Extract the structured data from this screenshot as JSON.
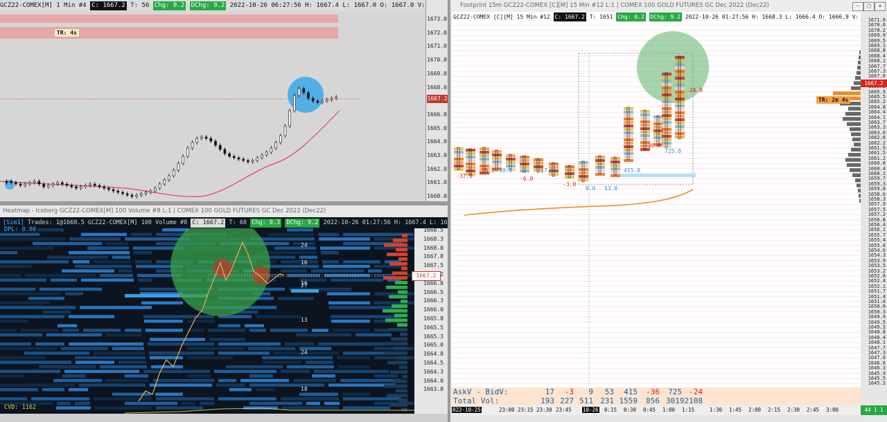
{
  "panel1": {
    "header": {
      "symbol": "GCZ22-COMEX[M]",
      "interval": "1 Min",
      "chart_no": "#4",
      "close_tag": "C: 1667.2",
      "ticks": "T: 56",
      "chg_tag": "Chg: 0.2",
      "dchg_tag": "DChg: 9.2",
      "ohlc": "2022-10-26 06:27:56 H: 1667.4 L: 1667.0 O: 1667.0 V: 66 B: 1667.1 A: 1667.2 7x5 TR: 4s BV: 31"
    },
    "timer_label": "TR: 4s",
    "last_price": "1667.2",
    "price_labels": [
      "1673.0",
      "1672.0",
      "1671.0",
      "1670.0",
      "1669.0",
      "1668.0",
      "1667.0",
      "1666.0",
      "1665.0",
      "1664.0",
      "1663.0",
      "1662.0",
      "1661.0",
      "1660.0"
    ]
  },
  "panel2": {
    "title": "Heatmap - Iceberg GCZ22-COMEX[M] 100 Volume #8 L:1 | COMEX 100 GOLD FUTURES GC Dec 2022 (Dec22)",
    "header": {
      "sim": "[Sim1]",
      "trades": "Trades: 1@1668.5",
      "symbol": "GCZ22-COMEX[M]",
      "interval": "100 Volume",
      "chart_no": "#8",
      "close_tag": "C: 1667.2",
      "ticks": "T: 68",
      "chg_tag": "Chg: 0.3",
      "dchg_tag": "DChg: 9.2",
      "ohlc": "2022-10-26 01:27:56 H: 1667.4 L: 16"
    },
    "dpl": "DPL: 0.08",
    "cvd": "CVD: 1162",
    "last_price": "1667.2",
    "price_labels": [
      "1668.5",
      "1668.3",
      "1668.0",
      "1667.8",
      "1667.5",
      "1667.2",
      "1666.8",
      "1666.5",
      "1666.3",
      "1666.0",
      "1665.8",
      "1665.5",
      "1665.3",
      "1665.0",
      "1664.8",
      "1664.5",
      "1664.3",
      "1664.0",
      "1663.8"
    ],
    "volume_labels": [
      "24",
      "16",
      "16",
      "27",
      "13",
      "24",
      "18"
    ]
  },
  "panel3": {
    "title": "Footprint 15m GCZ22-COMEX [C][M]  15 Min  #12 L:1 | COMEX 100 GOLD FUTURES GC Dec 2022 (Dec22)",
    "header": {
      "symbol": "GCZ22-COMEX [C][M]",
      "interval": "15 Min",
      "chart_no": "#12",
      "close_tag": "C: 1667.2",
      "ticks": "T: 1651",
      "chg_tag": "Chg: 0.2",
      "dchg_tag": "DChg: 9.2",
      "ohlc": "2022-10-26 01:27:56 H: 1668.3 L: 1666.4 O: 1666.9 V: 2108 B: 1667.1 A: 1667."
    },
    "timer_label": "TR: 2m 4s",
    "last_price": "1667.2",
    "deltas": [
      "-37.0",
      "-25.0",
      "80.0",
      "-6.0",
      "17.0",
      "-3.0",
      "9.0",
      "53.0",
      "415.0",
      "-36.0",
      "725.0",
      "-24.0"
    ],
    "table": {
      "row1_label": "AskV - BidV:",
      "row1": [
        "17",
        "-3",
        "9",
        "53",
        "415",
        "-36",
        "725",
        "-24"
      ],
      "row2_label": "Total Vol:",
      "row2": [
        "193",
        "227",
        "511",
        "231",
        "1559",
        "856",
        "30192108"
      ]
    },
    "time_labels": [
      "022-10-25",
      "23:00",
      "23:15",
      "23:30",
      "23:45",
      "10-26",
      "0:15",
      "0:30",
      "0:45",
      "1:00",
      "1:15",
      "1:30",
      "1:45",
      "2:00",
      "2:15",
      "2:30",
      "2:45",
      "3:00"
    ],
    "bottom_right": "44 1 1",
    "price_labels": [
      "1671.0",
      "1670.6",
      "1670.2",
      "1669.9",
      "1669.5",
      "1669.1",
      "1668.8",
      "1668.4",
      "1668.1",
      "1667.7",
      "1667.3",
      "1667.0",
      "1666.6",
      "1666.2",
      "1665.9",
      "1665.5",
      "1665.2",
      "1664.8",
      "1664.4",
      "1664.1",
      "1663.7",
      "1663.3",
      "1663.0",
      "1662.6",
      "1662.2",
      "1661.9",
      "1661.5",
      "1661.2",
      "1660.8",
      "1660.4",
      "1660.1",
      "1659.7",
      "1659.3",
      "1659.0",
      "1658.6",
      "1658.3",
      "1657.9",
      "1657.5",
      "1657.2",
      "1656.8",
      "1656.4",
      "1656.1",
      "1655.7",
      "1655.4",
      "1655.0",
      "1654.6",
      "1654.3",
      "1653.9",
      "1653.5",
      "1653.2",
      "1652.8",
      "1652.4",
      "1652.1",
      "1651.7",
      "1651.4",
      "1651.0",
      "1650.6",
      "1650.3",
      "1649.9",
      "1649.5",
      "1649.2",
      "1648.8",
      "1648.4",
      "1648.1",
      "1647.7",
      "1647.3",
      "1647.0",
      "1646.6",
      "1646.3",
      "1645.9",
      "1645.5",
      "1645.2"
    ]
  },
  "colors": {
    "up_candle": "#ffffff",
    "down_candle": "#111111",
    "ma_line": "#e0405a",
    "vwap_line": "#f08a24",
    "highlight_circle_blue": "#3aa8e8",
    "highlight_circle_green": "#3aa14a",
    "timer_bg": "#f5a04a"
  }
}
